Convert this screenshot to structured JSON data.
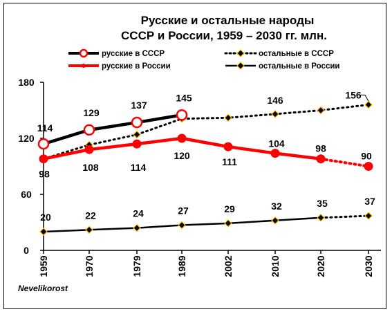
{
  "chart_data": {
    "type": "line",
    "title": [
      "Русские и  остальные народы",
      "СССР и  России, 1959 – 2030 гг.  млн."
    ],
    "categories": [
      "1959",
      "1970",
      "1979",
      "1989",
      "2002",
      "2010",
      "2020",
      "2030"
    ],
    "ylim": [
      0,
      180
    ],
    "yticks": [
      "0",
      "60",
      "120",
      "180"
    ],
    "grid": false,
    "legend_position": "top",
    "series": [
      {
        "key": "rus_ussr",
        "name": "русские в СССР",
        "color": "#000000",
        "marker_color": "#ff0000",
        "values": [
          114,
          129,
          137,
          145,
          null,
          null,
          null,
          null
        ],
        "labels": [
          "114",
          "129",
          "137",
          "145",
          "",
          "",
          "",
          ""
        ]
      },
      {
        "key": "rus_russia",
        "name": "русские в России",
        "color": "#ff0000",
        "values": [
          98,
          108,
          114,
          120,
          111,
          104,
          98,
          90
        ],
        "labels": [
          "98",
          "108",
          "114",
          "120",
          "111",
          "104",
          "98",
          "90"
        ]
      },
      {
        "key": "other_ussr",
        "name": "остальные  в СССР",
        "color": "#000000",
        "marker_color": "#ffc000",
        "values": [
          98,
          113,
          124,
          141,
          142,
          146,
          150,
          156
        ],
        "labels": [
          "",
          "",
          "",
          "",
          "",
          "146",
          "",
          "156"
        ]
      },
      {
        "key": "other_russia",
        "name": "остальные  в России",
        "color": "#000000",
        "marker_color": "#ffc000",
        "values": [
          20,
          22,
          24,
          27,
          29,
          32,
          35,
          37
        ],
        "labels": [
          "20",
          "22",
          "24",
          "27",
          "29",
          "32",
          "35",
          "37"
        ]
      }
    ]
  },
  "watermark": "Nevelikorost"
}
